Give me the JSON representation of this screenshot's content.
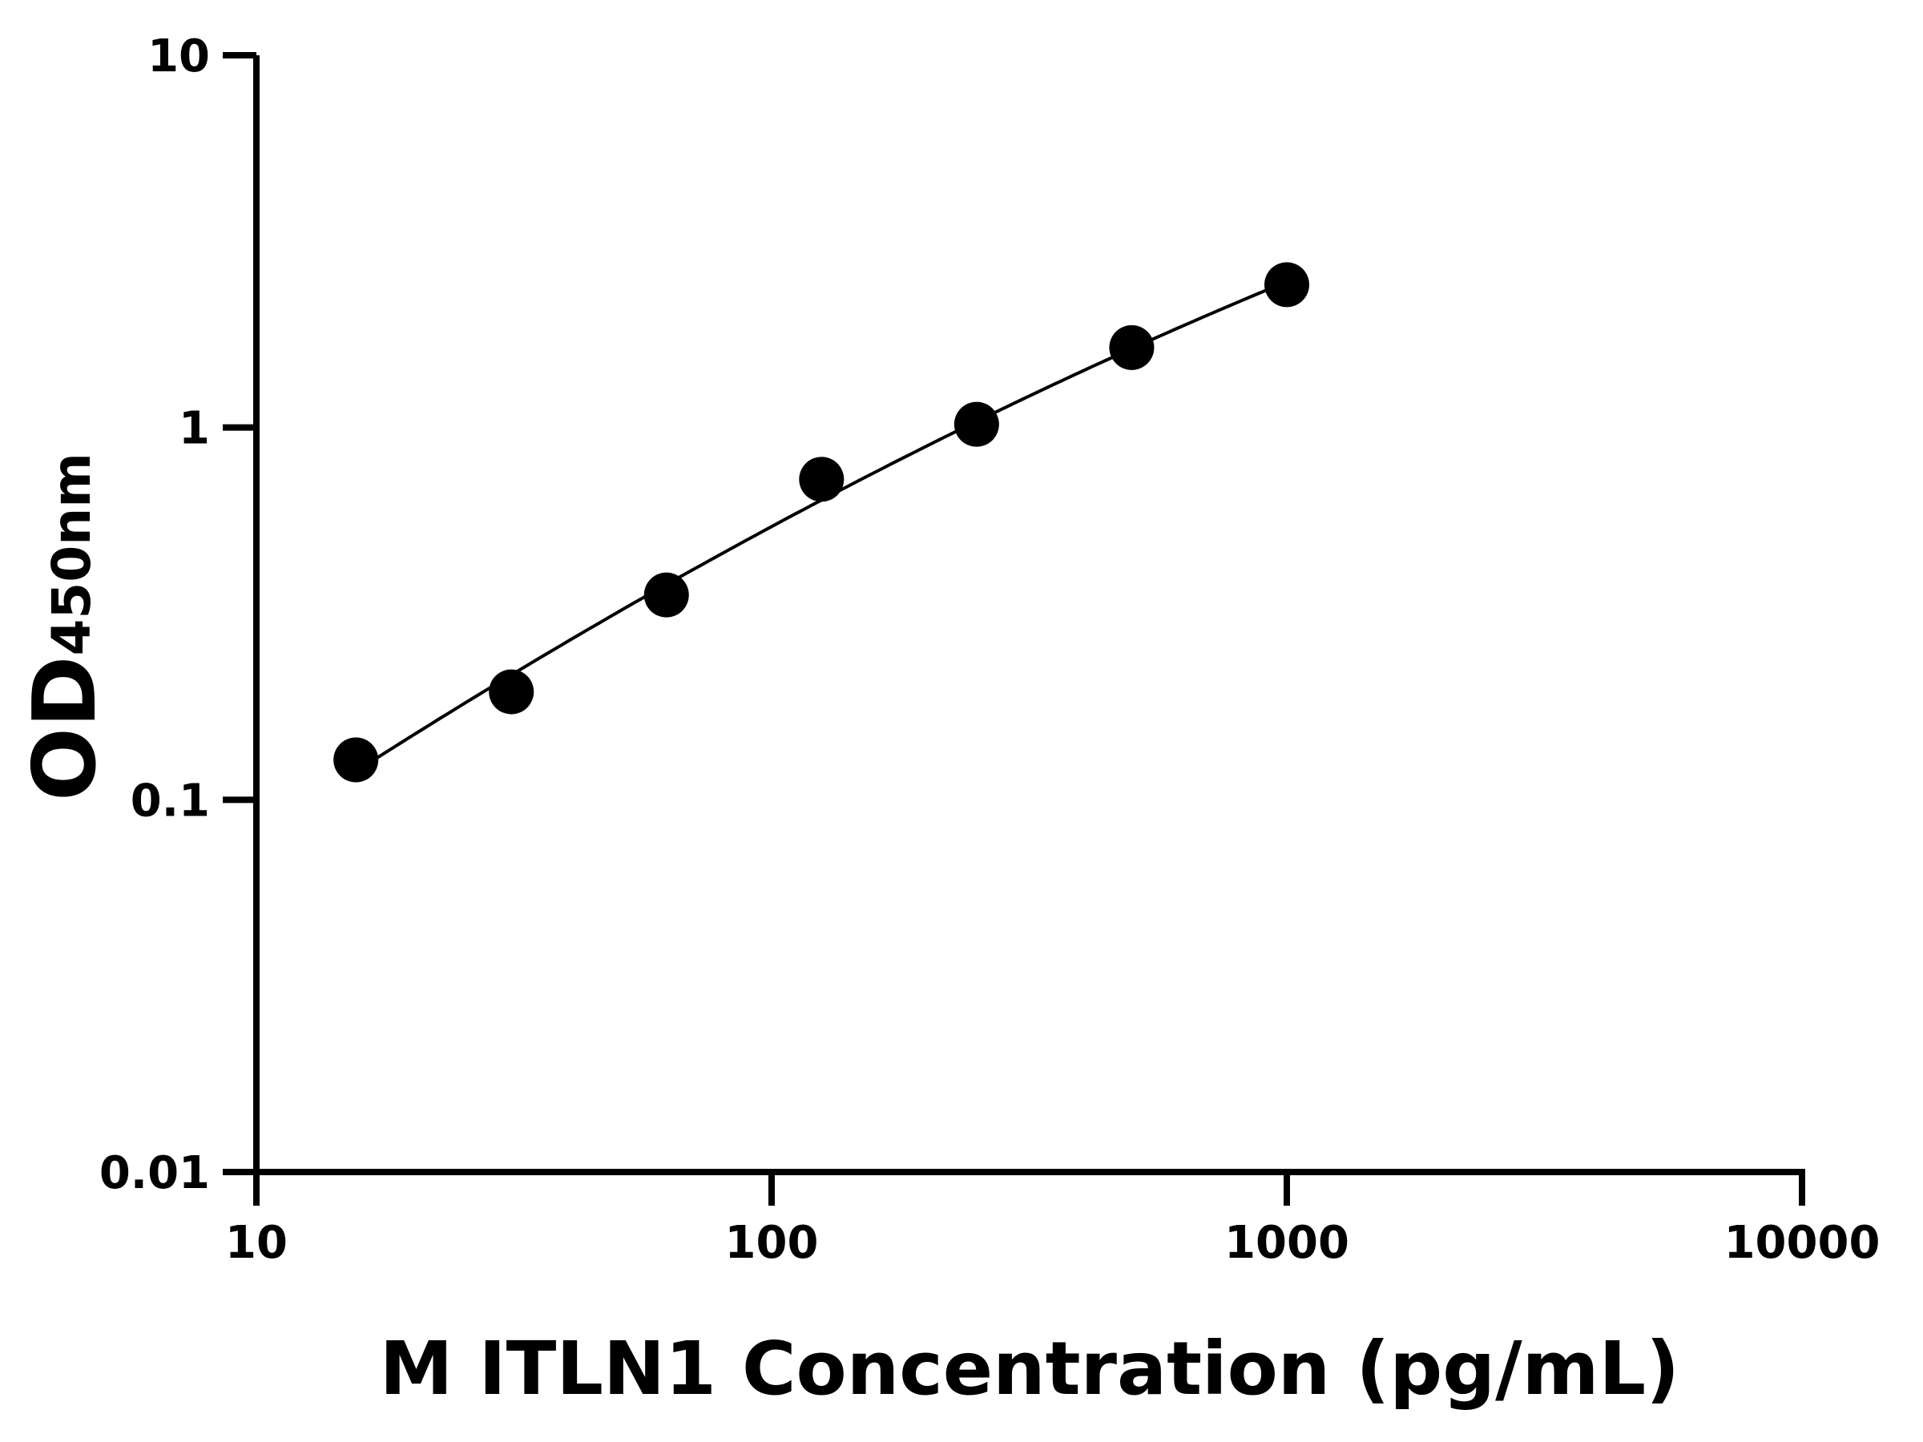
{
  "chart_data": {
    "type": "scatter",
    "title": "",
    "xlabel": "M ITLN1 Concentration (pg/mL)",
    "ylabel_main": "OD",
    "ylabel_sub": "450nm",
    "x_scale": "log",
    "y_scale": "log",
    "xlim": [
      10,
      10000
    ],
    "ylim": [
      0.01,
      10
    ],
    "x_ticks": [
      10,
      100,
      1000,
      10000
    ],
    "x_tick_labels": [
      "10",
      "100",
      "1000",
      "10000"
    ],
    "y_ticks": [
      0.01,
      0.1,
      1,
      10
    ],
    "y_tick_labels": [
      "0.01",
      "0.1",
      "1",
      "10"
    ],
    "grid": false,
    "marker_color": "#000000",
    "line_color": "#000000",
    "points": {
      "x": [
        15.6,
        31.25,
        62.5,
        125,
        250,
        500,
        1000
      ],
      "y": [
        0.128,
        0.195,
        0.355,
        0.726,
        1.02,
        1.64,
        2.42
      ]
    },
    "fit_curve": true
  }
}
